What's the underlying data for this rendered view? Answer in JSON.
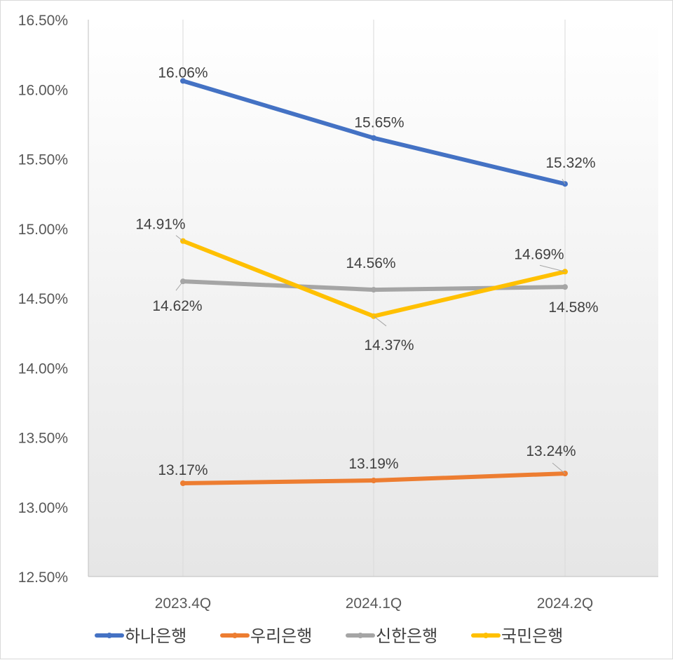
{
  "chart_data": {
    "type": "line",
    "categories": [
      "2023.4Q",
      "2024.1Q",
      "2024.2Q"
    ],
    "ylim": [
      12.5,
      16.5
    ],
    "ytick_step": 0.5,
    "y_tick_labels": [
      "12.50%",
      "13.00%",
      "13.50%",
      "14.00%",
      "14.50%",
      "15.00%",
      "15.50%",
      "16.00%",
      "16.50%"
    ],
    "grid": "vertical",
    "legend_position": "bottom",
    "series": [
      {
        "name": "하나은행",
        "color": "#4472C4",
        "values": [
          16.06,
          15.65,
          15.32
        ],
        "labels": [
          "16.06%",
          "15.65%",
          "15.32%"
        ]
      },
      {
        "name": "우리은행",
        "color": "#ED7D31",
        "values": [
          13.17,
          13.19,
          13.24
        ],
        "labels": [
          "13.17%",
          "13.19%",
          "13.24%"
        ]
      },
      {
        "name": "신한은행",
        "color": "#A5A5A5",
        "values": [
          14.62,
          14.56,
          14.58
        ],
        "labels": [
          "14.62%",
          "14.56%",
          "14.58%"
        ]
      },
      {
        "name": "국민은행",
        "color": "#FFC000",
        "values": [
          14.91,
          14.37,
          14.69
        ],
        "labels": [
          "14.91%",
          "14.37%",
          "14.69%"
        ]
      }
    ]
  }
}
